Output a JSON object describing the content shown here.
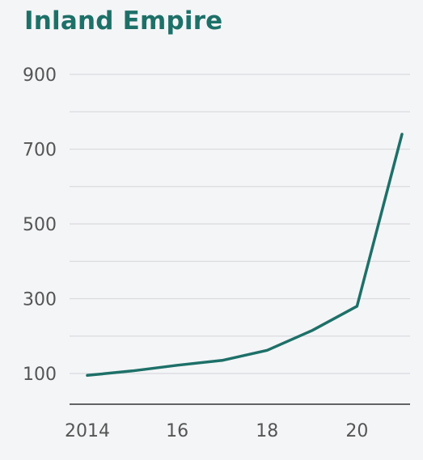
{
  "chart_data": {
    "type": "line",
    "title": "Inland Empire",
    "xlabel": "",
    "ylabel": "",
    "x": [
      2014,
      2015,
      2016,
      2017,
      2018,
      2019,
      2020,
      2021
    ],
    "x_tick_values": [
      2014,
      2016,
      2018,
      2020
    ],
    "x_tick_labels": [
      "2014",
      "16",
      "18",
      "20"
    ],
    "xlim": [
      2014,
      2021
    ],
    "y_tick_values": [
      100,
      300,
      500,
      700,
      900
    ],
    "y_tick_labels": [
      "100",
      "300",
      "500",
      "700",
      "900"
    ],
    "ylim": [
      20,
      900
    ],
    "grid": true,
    "legend": "none",
    "series": [
      {
        "values": [
          95,
          107,
          122,
          135,
          162,
          215,
          280,
          740
        ]
      }
    ],
    "colors": {
      "line": "#1d7068",
      "title": "#1d7068",
      "grid": "#d9dbdf",
      "axis": "#333333",
      "tick_text": "#555555",
      "background": "#f4f5f7"
    }
  }
}
